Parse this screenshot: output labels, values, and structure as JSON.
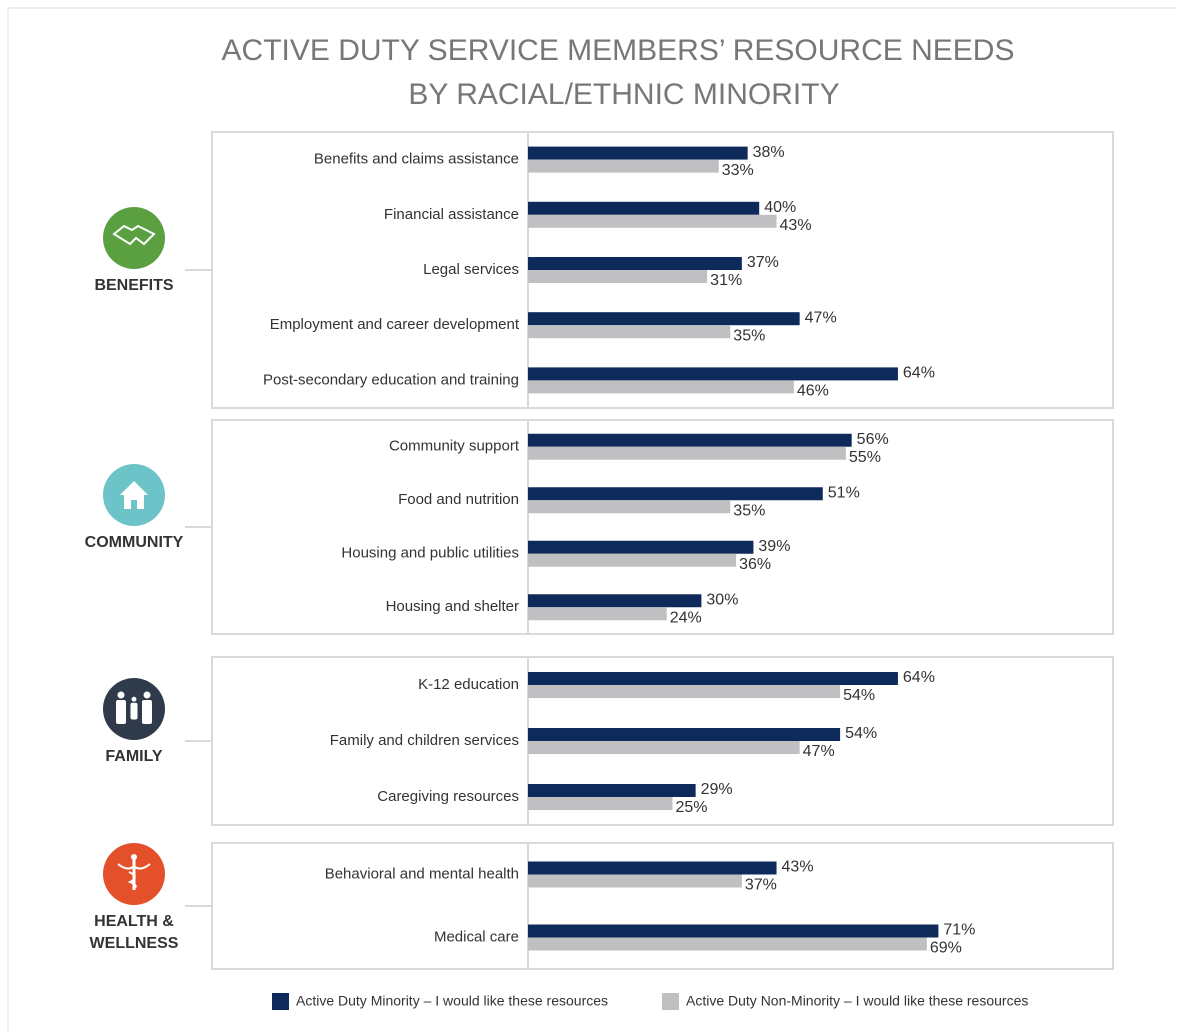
{
  "chart_data": {
    "type": "bar",
    "orientation": "horizontal",
    "title": [
      "ACTIVE DUTY SERVICE MEMBERS’ RESOURCE NEEDS",
      "BY RACIAL/ETHNIC MINORITY"
    ],
    "xlim": [
      0,
      100
    ],
    "groups": [
      {
        "label": "BENEFITS",
        "color": "#5aa040",
        "categories": [
          "Benefits and claims assistance",
          "Financial assistance",
          "Legal services",
          "Employment and career development",
          "Post-secondary education and training"
        ]
      },
      {
        "label": "COMMUNITY",
        "color": "#6cc3c8",
        "categories": [
          "Community support",
          "Food and nutrition",
          "Housing and public utilities",
          "Housing and shelter"
        ]
      },
      {
        "label": "FAMILY",
        "color": "#2f3a4a",
        "categories": [
          "K-12 education",
          "Family and children services",
          "Caregiving resources"
        ]
      },
      {
        "label": "HEALTH & WELLNESS",
        "color": "#e3502a",
        "categories": [
          "Behavioral and mental health",
          "Medical care"
        ]
      }
    ],
    "series": [
      {
        "name": "Active Duty Minority  – I would like these resources",
        "color": "#0e2a5a",
        "values": [
          38,
          40,
          37,
          47,
          64,
          56,
          51,
          39,
          30,
          64,
          54,
          29,
          43,
          71
        ],
        "value_labels": [
          "38%",
          "40%",
          "37%",
          "47%",
          "64%",
          "56%",
          "51%",
          "39%",
          "30%",
          "64%",
          "54%",
          "29%",
          "43%",
          "71%"
        ]
      },
      {
        "name": "Active Duty Non-Minority – I would like these resources",
        "color": "#c0c0c2",
        "values": [
          33,
          43,
          31,
          35,
          46,
          55,
          35,
          36,
          24,
          54,
          47,
          25,
          37,
          69
        ],
        "value_labels": [
          "33%",
          "43%",
          "31%",
          "35%",
          "46%",
          "55%",
          "35%",
          "36%",
          "24%",
          "54%",
          "47%",
          "25%",
          "37%",
          "69%"
        ]
      }
    ]
  }
}
